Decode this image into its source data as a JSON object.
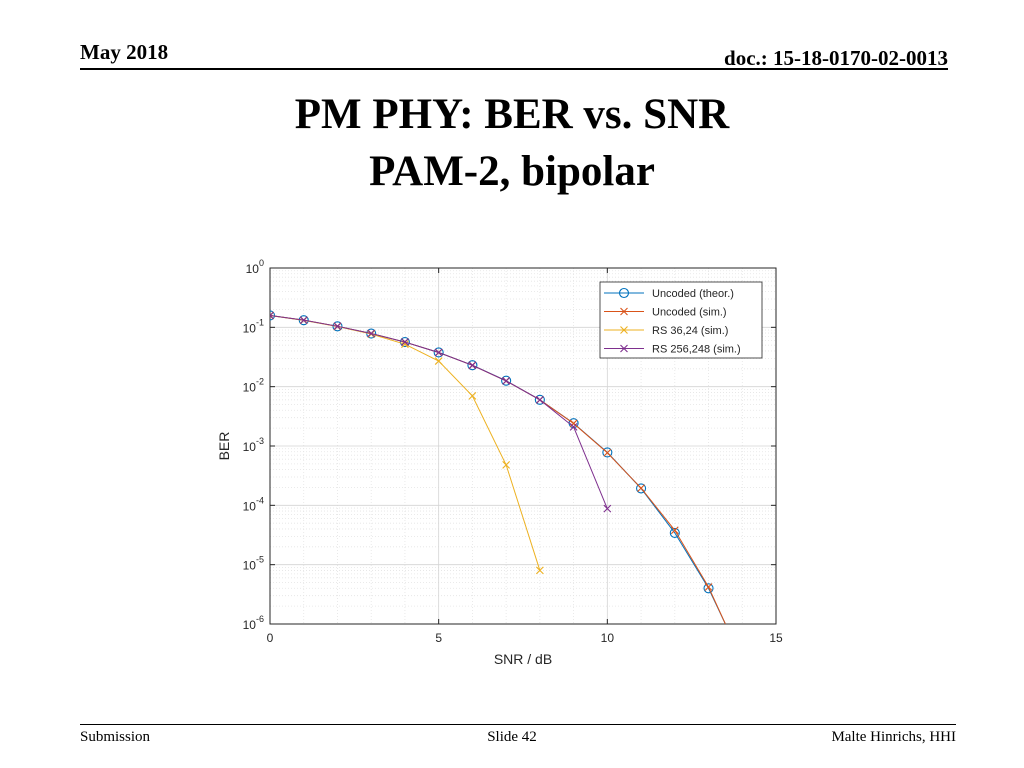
{
  "header": {
    "date": "May 2018",
    "doc": "doc.: 15-18-0170-02-0013"
  },
  "title": {
    "line1": "PM PHY: BER vs. SNR",
    "line2": "PAM-2, bipolar"
  },
  "footer": {
    "left": "Submission",
    "center": "Slide 42",
    "right": "Malte Hinrichs, HHI"
  },
  "chart_data": {
    "type": "line",
    "xlabel": "SNR / dB",
    "ylabel": "BER",
    "xlim": [
      0,
      15
    ],
    "ylim": [
      1e-06,
      1
    ],
    "yscale": "log",
    "grid": true,
    "legend_position": "top-right",
    "x_ticks": [
      "0",
      "5",
      "10",
      "15"
    ],
    "y_ticks": [
      {
        "base": "10",
        "exp": "0"
      },
      {
        "base": "10",
        "exp": "-1"
      },
      {
        "base": "10",
        "exp": "-2"
      },
      {
        "base": "10",
        "exp": "-3"
      },
      {
        "base": "10",
        "exp": "-4"
      },
      {
        "base": "10",
        "exp": "-5"
      },
      {
        "base": "10",
        "exp": "-6"
      }
    ],
    "series": [
      {
        "name": "Uncoded (theor.)",
        "color": "#0072BD",
        "marker": "circle",
        "x": [
          0,
          1,
          2,
          3,
          4,
          5,
          6,
          7,
          8,
          9,
          10,
          11,
          12,
          13,
          13.5
        ],
        "y": [
          0.1587,
          0.1318,
          0.104,
          0.0786,
          0.0565,
          0.0377,
          0.023,
          0.0126,
          0.006,
          0.00242,
          0.00078,
          0.000193,
          3.43e-05,
          4e-06,
          1e-06
        ]
      },
      {
        "name": "Uncoded (sim.)",
        "color": "#D95319",
        "marker": "x",
        "x": [
          0,
          1,
          2,
          3,
          4,
          5,
          6,
          7,
          8,
          9,
          10,
          11,
          12,
          13,
          13.5
        ],
        "y": [
          0.158,
          0.132,
          0.104,
          0.0787,
          0.0565,
          0.0377,
          0.0229,
          0.0125,
          0.006,
          0.0024,
          0.00077,
          0.000195,
          3.8e-05,
          4.2e-06,
          1e-06
        ]
      },
      {
        "name": "RS 36,24 (sim.)",
        "color": "#EDB120",
        "marker": "x",
        "x": [
          0,
          1,
          2,
          3,
          4,
          5,
          6,
          7,
          8
        ],
        "y": [
          0.158,
          0.131,
          0.103,
          0.077,
          0.052,
          0.027,
          0.007,
          0.00048,
          8e-06
        ]
      },
      {
        "name": "RS 256,248 (sim.)",
        "color": "#7E2F8E",
        "marker": "x",
        "x": [
          0,
          1,
          2,
          3,
          4,
          5,
          6,
          7,
          8,
          9,
          10
        ],
        "y": [
          0.158,
          0.132,
          0.104,
          0.0786,
          0.0565,
          0.0377,
          0.0229,
          0.0125,
          0.006,
          0.0021,
          8.8e-05
        ]
      }
    ]
  }
}
